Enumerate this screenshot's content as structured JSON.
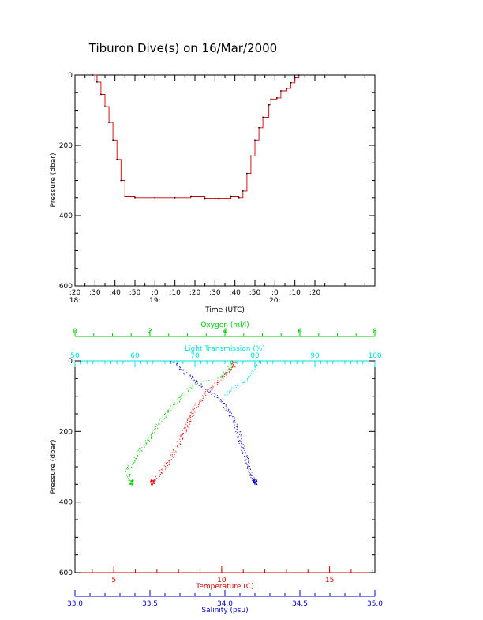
{
  "title": "Tiburon Dive(s) on 16/Mar/2000",
  "colors": {
    "axis": "#000000",
    "depth_trace": "#cc0000",
    "oxygen": "#00cc00",
    "light": "#00e0e0",
    "temperature": "#dd0000",
    "salinity": "#0000cc"
  },
  "chart_data": [
    {
      "type": "line",
      "title": "Tiburon Dive(s) on 16/Mar/2000",
      "xlabel": "Time (UTC)",
      "ylabel": "Pressure (dbar)",
      "xlim_minutes_after_1800": [
        -10,
        140
      ],
      "ylim": [
        0,
        600
      ],
      "y_inverted": true,
      "y_ticks": [
        "0",
        "200",
        "400",
        "600"
      ],
      "x_ticks": [
        {
          "t": -10,
          "label": ":20",
          "hour": "18:"
        },
        {
          "t": 0,
          "label": ":30",
          "hour": ""
        },
        {
          "t": 10,
          "label": ":40",
          "hour": ""
        },
        {
          "t": 20,
          "label": ":50",
          "hour": ""
        },
        {
          "t": 30,
          "label": ":0",
          "hour": "19:"
        },
        {
          "t": 40,
          "label": ":10",
          "hour": ""
        },
        {
          "t": 50,
          "label": ":20",
          "hour": ""
        },
        {
          "t": 60,
          "label": ":30",
          "hour": ""
        },
        {
          "t": 70,
          "label": ":40",
          "hour": ""
        },
        {
          "t": 80,
          "label": ":50",
          "hour": ""
        },
        {
          "t": 90,
          "label": ":0",
          "hour": "20:"
        },
        {
          "t": 100,
          "label": ":10",
          "hour": ""
        },
        {
          "t": 110,
          "label": ":20",
          "hour": ""
        }
      ],
      "series": [
        {
          "points": [
            [
              -1,
              0
            ],
            [
              1,
              20
            ],
            [
              3,
              55
            ],
            [
              5,
              90
            ],
            [
              7,
              135
            ],
            [
              9,
              185
            ],
            [
              11,
              240
            ],
            [
              13,
              300
            ],
            [
              15,
              345
            ],
            [
              20,
              350
            ],
            [
              30,
              350
            ],
            [
              40,
              350
            ],
            [
              48,
              345
            ],
            [
              55,
              352
            ],
            [
              62,
              352
            ],
            [
              68,
              345
            ],
            [
              72,
              350
            ],
            [
              74,
              330
            ],
            [
              76,
              280
            ],
            [
              78,
              230
            ],
            [
              80,
              185
            ],
            [
              82,
              150
            ],
            [
              84,
              120
            ],
            [
              87,
              85
            ],
            [
              88,
              68
            ],
            [
              91,
              65
            ],
            [
              93,
              45
            ],
            [
              96,
              38
            ],
            [
              98,
              22
            ],
            [
              100,
              8
            ],
            [
              102,
              0
            ]
          ]
        }
      ]
    },
    {
      "type": "scatter",
      "ylabel": "Pressure (dbar)",
      "ylim": [
        0,
        600
      ],
      "y_inverted": true,
      "y_ticks": [
        "0",
        "200",
        "400",
        "600"
      ],
      "axes": {
        "oxygen": {
          "label": "Oxygen (ml/l)",
          "range": [
            0,
            8
          ],
          "ticks": [
            "0",
            "2",
            "4",
            "6",
            "8"
          ],
          "position": "top"
        },
        "light": {
          "label": "Light Transmission (%)",
          "range": [
            50,
            100
          ],
          "ticks": [
            "50",
            "60",
            "70",
            "80",
            "90",
            "100"
          ],
          "position": "top"
        },
        "temperature": {
          "label": "Temperature (C)",
          "range": [
            3.2,
            17.1
          ],
          "ticks": [
            "5",
            "10",
            "15"
          ],
          "position": "bottom"
        },
        "salinity": {
          "label": "Salinity (psu)",
          "range": [
            33.0,
            35.0
          ],
          "ticks": [
            "33.0",
            "33.5",
            "34.0",
            "34.5",
            "35.0"
          ],
          "position": "bottom"
        }
      },
      "series": [
        {
          "variable": "oxygen",
          "points": [
            [
              4.2,
              0
            ],
            [
              4.1,
              25
            ],
            [
              3.9,
              45
            ],
            [
              3.2,
              65
            ],
            [
              2.9,
              95
            ],
            [
              2.5,
              140
            ],
            [
              2.1,
              200
            ],
            [
              1.7,
              260
            ],
            [
              1.4,
              310
            ],
            [
              1.5,
              345
            ]
          ]
        },
        {
          "variable": "light",
          "points": [
            [
              80.5,
              0
            ],
            [
              80,
              20
            ],
            [
              79,
              50
            ],
            [
              76,
              80
            ],
            [
              75,
              100
            ]
          ]
        },
        {
          "variable": "temperature",
          "points": [
            [
              10.6,
              0
            ],
            [
              10.5,
              20
            ],
            [
              10.0,
              50
            ],
            [
              9.3,
              90
            ],
            [
              8.8,
              130
            ],
            [
              8.5,
              170
            ],
            [
              8.2,
              210
            ],
            [
              7.8,
              260
            ],
            [
              7.4,
              300
            ],
            [
              7.0,
              330
            ],
            [
              6.8,
              345
            ]
          ]
        },
        {
          "variable": "salinity",
          "points": [
            [
              33.65,
              0
            ],
            [
              33.74,
              35
            ],
            [
              33.84,
              70
            ],
            [
              33.97,
              110
            ],
            [
              34.05,
              160
            ],
            [
              34.09,
              200
            ],
            [
              34.12,
              250
            ],
            [
              34.16,
              300
            ],
            [
              34.2,
              345
            ]
          ]
        }
      ]
    }
  ]
}
